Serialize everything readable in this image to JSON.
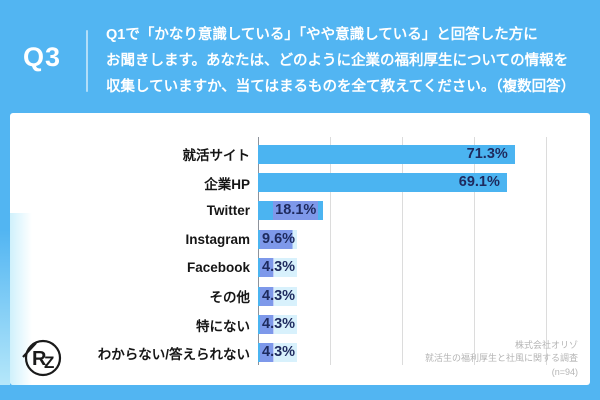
{
  "header": {
    "question_number": "Q3",
    "question_text": "Q1で「かなり意識している」「やや意識している」と回答した方に\nお聞きします。あなたは、どのように企業の福利厚生についての情報を\n収集していますか、当てはまるものを全て教えてください。（複数回答）"
  },
  "chart_data": {
    "type": "bar",
    "orientation": "horizontal",
    "categories": [
      "就活サイト",
      "企業HP",
      "Twitter",
      "Instagram",
      "Facebook",
      "その他",
      "特にない",
      "わからない/答えられない"
    ],
    "values": [
      71.3,
      69.1,
      18.1,
      9.6,
      4.3,
      4.3,
      4.3,
      4.3
    ],
    "value_labels": [
      "71.3%",
      "69.1%",
      "18.1%",
      "9.6%",
      "4.3%",
      "4.3%",
      "4.3%",
      "4.3%"
    ],
    "label_highlighted": [
      false,
      false,
      true,
      true,
      true,
      true,
      true,
      true
    ],
    "title": "",
    "xlabel": "",
    "ylabel": "",
    "xlim": [
      0,
      80
    ],
    "gridline_step": 20,
    "grid": true,
    "legend": false,
    "bar_color": "#4bb4f1",
    "value_text_color": "#1e2a5e",
    "highlight_color": "rgba(146,142,232,0.72)",
    "highlight_pale_color": "rgba(214,240,252,0.95)",
    "background_color": "#52b5f2",
    "panel_color": "#ffffff"
  },
  "source": {
    "company": "株式会社オリゾ",
    "survey_title": "就活生の福利厚生と社風に関する調査",
    "sample_size": "(n=94)"
  },
  "logo": {
    "letter_r": "R",
    "letter_z": "Z"
  }
}
